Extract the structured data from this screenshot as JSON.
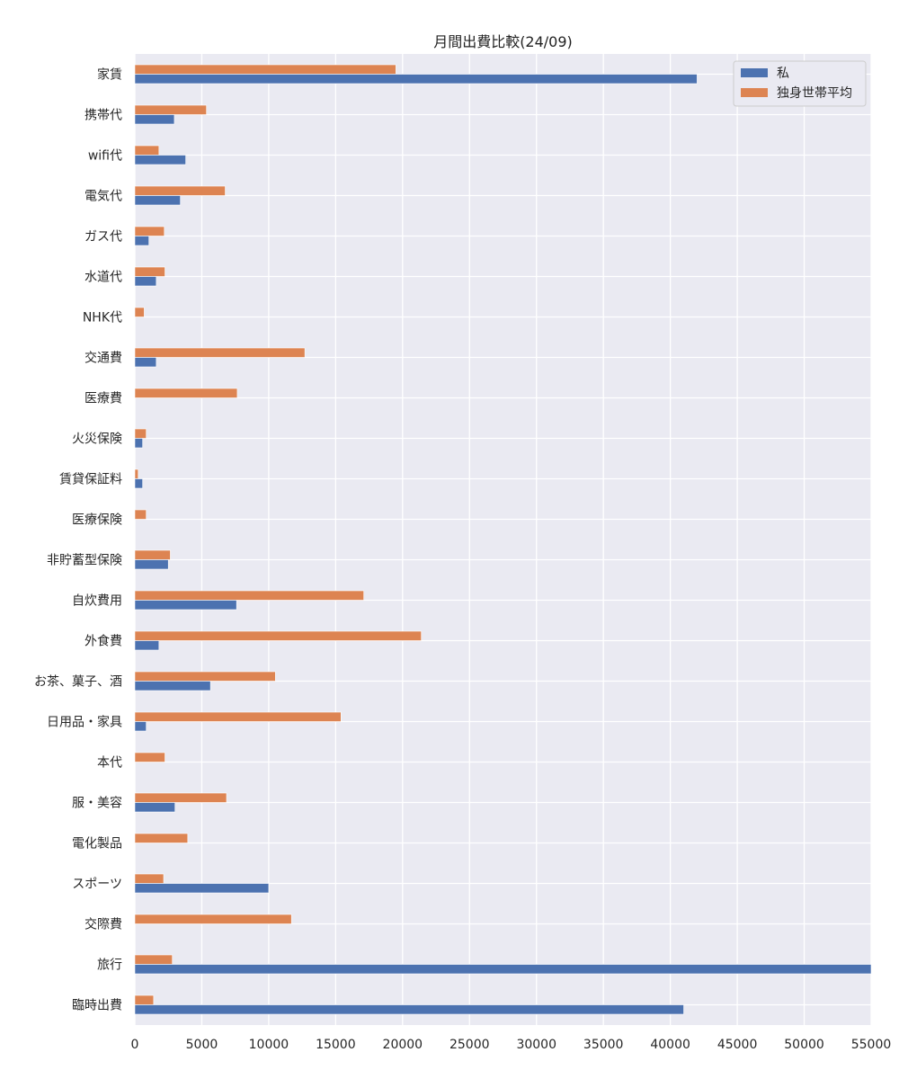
{
  "chart_data": {
    "type": "bar",
    "orientation": "horizontal",
    "title": "月間出費比較(24/09)",
    "xlabel": "",
    "ylabel": "",
    "xlim": [
      0,
      55000
    ],
    "xticks": [
      0,
      5000,
      10000,
      15000,
      20000,
      25000,
      30000,
      35000,
      40000,
      45000,
      50000,
      55000
    ],
    "grid": true,
    "legend_position": "top-right",
    "categories": [
      "家賃",
      "携帯代",
      "wifi代",
      "電気代",
      "ガス代",
      "水道代",
      "NHK代",
      "交通費",
      "医療費",
      "火災保険",
      "賃貸保証料",
      "医療保険",
      "非貯蓄型保険",
      "自炊費用",
      "外食費",
      "お茶、菓子、酒",
      "日用品・家具",
      "本代",
      "服・美容",
      "電化製品",
      "スポーツ",
      "交際費",
      "旅行",
      "臨時出費"
    ],
    "series": [
      {
        "name": "私",
        "color": "#4c72b0",
        "values": [
          42000,
          2950,
          3800,
          3400,
          1050,
          1600,
          0,
          1600,
          0,
          580,
          580,
          0,
          2500,
          7600,
          1800,
          5650,
          850,
          0,
          3000,
          0,
          10000,
          0,
          55000,
          41000
        ]
      },
      {
        "name": "独身世帯平均",
        "color": "#dd8452",
        "values": [
          19500,
          5350,
          1800,
          6750,
          2200,
          2250,
          700,
          12700,
          7650,
          850,
          250,
          850,
          2650,
          17100,
          21400,
          10500,
          15400,
          2250,
          6850,
          3950,
          2150,
          11700,
          2800,
          1400
        ]
      }
    ],
    "background_color": "#eaeaf2",
    "grid_color": "#ffffff"
  }
}
